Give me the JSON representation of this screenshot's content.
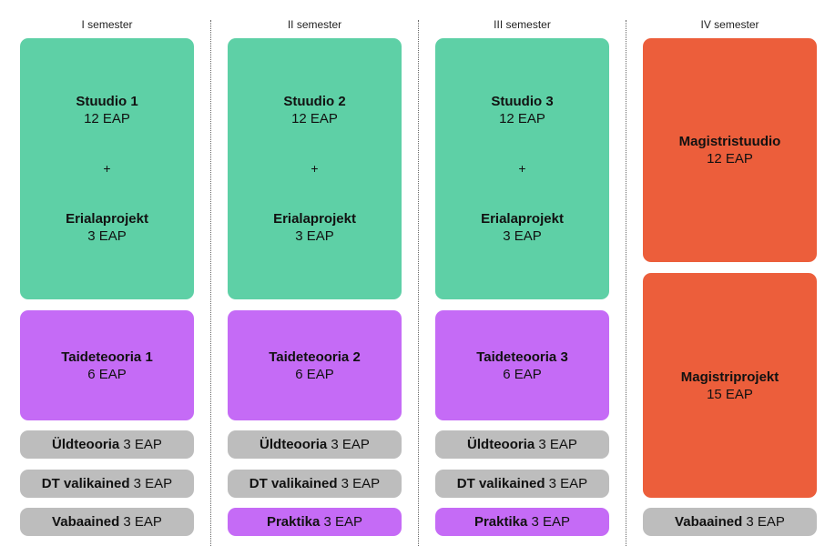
{
  "columns": [
    {
      "header": "I semester",
      "main": {
        "title1": "Stuudio 1",
        "sub1": "12 EAP",
        "plus": "+",
        "title2": "Erialaprojekt",
        "sub2": "3 EAP"
      },
      "theory": {
        "title": "Taideteooria 1",
        "sub": "6 EAP"
      },
      "pills": [
        {
          "bold": "Üldteooria",
          "rest": " 3 EAP"
        },
        {
          "bold": "DT valikained",
          "rest": " 3 EAP"
        },
        {
          "bold": "Vabaained",
          "rest": " 3 EAP"
        }
      ]
    },
    {
      "header": "II semester",
      "main": {
        "title1": "Stuudio 2",
        "sub1": "12 EAP",
        "plus": "+",
        "title2": "Erialaprojekt",
        "sub2": "3 EAP"
      },
      "theory": {
        "title": "Taideteooria 2",
        "sub": "6 EAP"
      },
      "pills": [
        {
          "bold": "Üldteooria",
          "rest": " 3 EAP"
        },
        {
          "bold": "DT valikained",
          "rest": " 3 EAP"
        },
        {
          "bold": "Praktika",
          "rest": " 3 EAP"
        }
      ]
    },
    {
      "header": "III semester",
      "main": {
        "title1": "Stuudio 3",
        "sub1": "12 EAP",
        "plus": "+",
        "title2": "Erialaprojekt",
        "sub2": "3 EAP"
      },
      "theory": {
        "title": "Taideteooria 3",
        "sub": "6 EAP"
      },
      "pills": [
        {
          "bold": "Üldteooria",
          "rest": " 3 EAP"
        },
        {
          "bold": "DT valikained",
          "rest": " 3 EAP"
        },
        {
          "bold": "Praktika",
          "rest": " 3 EAP"
        }
      ]
    },
    {
      "header": "IV semester",
      "studio": {
        "title": "Magistristuudio",
        "sub": "12 EAP"
      },
      "project": {
        "title": "Magistriprojekt",
        "sub": "15 EAP"
      },
      "pill": {
        "bold": "Vabaained",
        "rest": " 3 EAP"
      }
    }
  ],
  "colors": {
    "studio": "#5ed0a6",
    "theory": "#c56bf6",
    "master": "#ec5e3b",
    "general": "#bdbdbd",
    "practice": "#c56bf6"
  }
}
